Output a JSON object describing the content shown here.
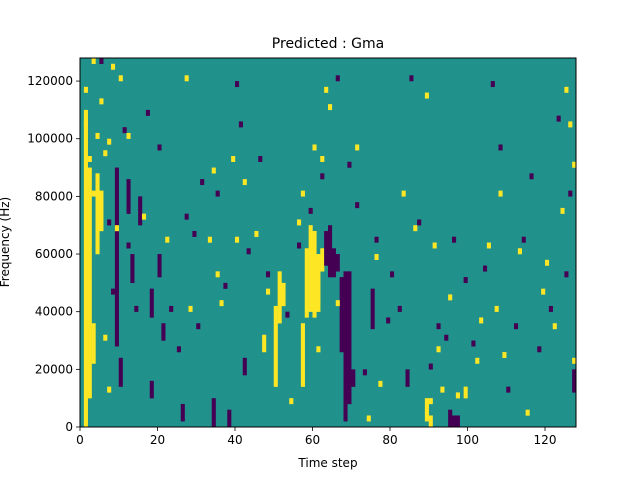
{
  "chart_data": {
    "type": "heatmap",
    "title": "Predicted : Gma",
    "xlabel": "Time step",
    "ylabel": "Frequency (Hz)",
    "xlim": [
      0,
      128
    ],
    "ylim": [
      0,
      128000
    ],
    "x_ticks": [
      0,
      20,
      40,
      60,
      80,
      100,
      120
    ],
    "y_ticks": [
      0,
      20000,
      40000,
      60000,
      80000,
      100000,
      120000
    ],
    "x_tick_labels": [
      "0",
      "20",
      "40",
      "60",
      "80",
      "100",
      "120"
    ],
    "y_tick_labels": [
      "0",
      "20000",
      "40000",
      "60000",
      "80000",
      "100000",
      "120000"
    ],
    "colormap": "viridis",
    "colors": {
      "background": "#21918c",
      "high": "#fde725",
      "low": "#440154"
    },
    "grid": false,
    "legend": "none",
    "time_bins": 128,
    "freq_bins": 64,
    "freq_bin_width_hz": 2000,
    "segments": [
      {
        "time": 1,
        "freq_start": 0,
        "freq_end": 110000,
        "value": "high"
      },
      {
        "time": 2,
        "freq_start": 10000,
        "freq_end": 90000,
        "value": "high"
      },
      {
        "time": 3,
        "freq_start": 22000,
        "freq_end": 36000,
        "value": "high"
      },
      {
        "time": 4,
        "freq_start": 62000,
        "freq_end": 88000,
        "value": "high"
      },
      {
        "time": 5,
        "freq_start": 68000,
        "freq_end": 82000,
        "value": "high"
      },
      {
        "time": 9,
        "freq_start": 28000,
        "freq_end": 90000,
        "value": "low"
      },
      {
        "time": 10,
        "freq_start": 14000,
        "freq_end": 24000,
        "value": "low"
      },
      {
        "time": 12,
        "freq_start": 74000,
        "freq_end": 86000,
        "value": "low"
      },
      {
        "time": 13,
        "freq_start": 50000,
        "freq_end": 60000,
        "value": "low"
      },
      {
        "time": 15,
        "freq_start": 70000,
        "freq_end": 80000,
        "value": "low"
      },
      {
        "time": 18,
        "freq_start": 10000,
        "freq_end": 16000,
        "value": "low"
      },
      {
        "time": 18,
        "freq_start": 38000,
        "freq_end": 48000,
        "value": "low"
      },
      {
        "time": 20,
        "freq_start": 52000,
        "freq_end": 60000,
        "value": "low"
      },
      {
        "time": 21,
        "freq_start": 30000,
        "freq_end": 36000,
        "value": "low"
      },
      {
        "time": 26,
        "freq_start": 2000,
        "freq_end": 8000,
        "value": "low"
      },
      {
        "time": 34,
        "freq_start": 0,
        "freq_end": 10000,
        "value": "low"
      },
      {
        "time": 38,
        "freq_start": 0,
        "freq_end": 6000,
        "value": "low"
      },
      {
        "time": 42,
        "freq_start": 18000,
        "freq_end": 24000,
        "value": "low"
      },
      {
        "time": 47,
        "freq_start": 26000,
        "freq_end": 32000,
        "value": "high"
      },
      {
        "time": 50,
        "freq_start": 14000,
        "freq_end": 42000,
        "value": "high"
      },
      {
        "time": 51,
        "freq_start": 36000,
        "freq_end": 54000,
        "value": "high"
      },
      {
        "time": 52,
        "freq_start": 42000,
        "freq_end": 50000,
        "value": "high"
      },
      {
        "time": 57,
        "freq_start": 14000,
        "freq_end": 36000,
        "value": "high"
      },
      {
        "time": 58,
        "freq_start": 38000,
        "freq_end": 62000,
        "value": "high"
      },
      {
        "time": 59,
        "freq_start": 40000,
        "freq_end": 70000,
        "value": "high"
      },
      {
        "time": 60,
        "freq_start": 38000,
        "freq_end": 68000,
        "value": "high"
      },
      {
        "time": 61,
        "freq_start": 40000,
        "freq_end": 60000,
        "value": "high"
      },
      {
        "time": 62,
        "freq_start": 54000,
        "freq_end": 62000,
        "value": "high"
      },
      {
        "time": 63,
        "freq_start": 56000,
        "freq_end": 68000,
        "value": "low"
      },
      {
        "time": 64,
        "freq_start": 52000,
        "freq_end": 70000,
        "value": "low"
      },
      {
        "time": 65,
        "freq_start": 52000,
        "freq_end": 62000,
        "value": "low"
      },
      {
        "time": 66,
        "freq_start": 54000,
        "freq_end": 60000,
        "value": "low"
      },
      {
        "time": 67,
        "freq_start": 26000,
        "freq_end": 52000,
        "value": "low"
      },
      {
        "time": 68,
        "freq_start": 2000,
        "freq_end": 54000,
        "value": "low"
      },
      {
        "time": 69,
        "freq_start": 8000,
        "freq_end": 54000,
        "value": "low"
      },
      {
        "time": 70,
        "freq_start": 14000,
        "freq_end": 20000,
        "value": "low"
      },
      {
        "time": 75,
        "freq_start": 34000,
        "freq_end": 48000,
        "value": "low"
      },
      {
        "time": 84,
        "freq_start": 14000,
        "freq_end": 20000,
        "value": "low"
      },
      {
        "time": 89,
        "freq_start": 2000,
        "freq_end": 10000,
        "value": "high"
      },
      {
        "time": 90,
        "freq_start": 0,
        "freq_end": 4000,
        "value": "high"
      },
      {
        "time": 95,
        "freq_start": 0,
        "freq_end": 6000,
        "value": "low"
      },
      {
        "time": 96,
        "freq_start": 0,
        "freq_end": 4000,
        "value": "low"
      },
      {
        "time": 97,
        "freq_start": 0,
        "freq_end": 4000,
        "value": "low"
      },
      {
        "time": 99,
        "freq_start": 10000,
        "freq_end": 14000,
        "value": "high"
      },
      {
        "time": 127,
        "freq_start": 12000,
        "freq_end": 20000,
        "value": "low"
      }
    ],
    "scattered_pixels": {
      "high": [
        [
          1,
          116000
        ],
        [
          1,
          104000
        ],
        [
          2,
          92000
        ],
        [
          3,
          126000
        ],
        [
          3,
          80000
        ],
        [
          4,
          100000
        ],
        [
          4,
          60000
        ],
        [
          5,
          112000
        ],
        [
          6,
          94000
        ],
        [
          6,
          30000
        ],
        [
          7,
          98000
        ],
        [
          7,
          12000
        ],
        [
          8,
          124000
        ],
        [
          9,
          68000
        ],
        [
          10,
          120000
        ],
        [
          12,
          100000
        ],
        [
          16,
          72000
        ],
        [
          22,
          64000
        ],
        [
          27,
          120000
        ],
        [
          28,
          40000
        ],
        [
          33,
          64000
        ],
        [
          34,
          88000
        ],
        [
          35,
          52000
        ],
        [
          36,
          42000
        ],
        [
          39,
          92000
        ],
        [
          40,
          64000
        ],
        [
          42,
          84000
        ],
        [
          45,
          66000
        ],
        [
          48,
          46000
        ],
        [
          54,
          8000
        ],
        [
          56,
          70000
        ],
        [
          57,
          80000
        ],
        [
          60,
          96000
        ],
        [
          61,
          26000
        ],
        [
          62,
          92000
        ],
        [
          63,
          116000
        ],
        [
          64,
          110000
        ],
        [
          66,
          42000
        ],
        [
          71,
          96000
        ],
        [
          74,
          2000
        ],
        [
          76,
          58000
        ],
        [
          77,
          14000
        ],
        [
          83,
          80000
        ],
        [
          86,
          68000
        ],
        [
          89,
          114000
        ],
        [
          90,
          8000
        ],
        [
          91,
          62000
        ],
        [
          92,
          26000
        ],
        [
          93,
          12000
        ],
        [
          95,
          44000
        ],
        [
          97,
          10000
        ],
        [
          102,
          22000
        ],
        [
          103,
          36000
        ],
        [
          105,
          62000
        ],
        [
          107,
          40000
        ],
        [
          108,
          80000
        ],
        [
          109,
          24000
        ],
        [
          113,
          60000
        ],
        [
          115,
          4000
        ],
        [
          119,
          46000
        ],
        [
          120,
          56000
        ],
        [
          122,
          34000
        ],
        [
          124,
          74000
        ],
        [
          125,
          116000
        ],
        [
          126,
          104000
        ],
        [
          127,
          22000
        ],
        [
          127,
          90000
        ]
      ],
      "low": [
        [
          5,
          126000
        ],
        [
          7,
          70000
        ],
        [
          8,
          46000
        ],
        [
          11,
          102000
        ],
        [
          12,
          62000
        ],
        [
          14,
          40000
        ],
        [
          17,
          108000
        ],
        [
          20,
          96000
        ],
        [
          23,
          40000
        ],
        [
          25,
          26000
        ],
        [
          27,
          72000
        ],
        [
          29,
          66000
        ],
        [
          30,
          34000
        ],
        [
          31,
          84000
        ],
        [
          35,
          80000
        ],
        [
          37,
          48000
        ],
        [
          40,
          118000
        ],
        [
          41,
          104000
        ],
        [
          43,
          60000
        ],
        [
          46,
          92000
        ],
        [
          48,
          52000
        ],
        [
          53,
          38000
        ],
        [
          56,
          62000
        ],
        [
          59,
          74000
        ],
        [
          62,
          86000
        ],
        [
          66,
          120000
        ],
        [
          69,
          90000
        ],
        [
          71,
          76000
        ],
        [
          73,
          18000
        ],
        [
          76,
          64000
        ],
        [
          79,
          36000
        ],
        [
          80,
          52000
        ],
        [
          82,
          40000
        ],
        [
          85,
          120000
        ],
        [
          87,
          70000
        ],
        [
          90,
          20000
        ],
        [
          92,
          34000
        ],
        [
          94,
          30000
        ],
        [
          96,
          64000
        ],
        [
          99,
          50000
        ],
        [
          101,
          28000
        ],
        [
          104,
          54000
        ],
        [
          106,
          118000
        ],
        [
          108,
          96000
        ],
        [
          110,
          12000
        ],
        [
          112,
          34000
        ],
        [
          114,
          64000
        ],
        [
          116,
          86000
        ],
        [
          118,
          26000
        ],
        [
          121,
          40000
        ],
        [
          123,
          106000
        ],
        [
          125,
          52000
        ],
        [
          126,
          80000
        ]
      ]
    }
  }
}
